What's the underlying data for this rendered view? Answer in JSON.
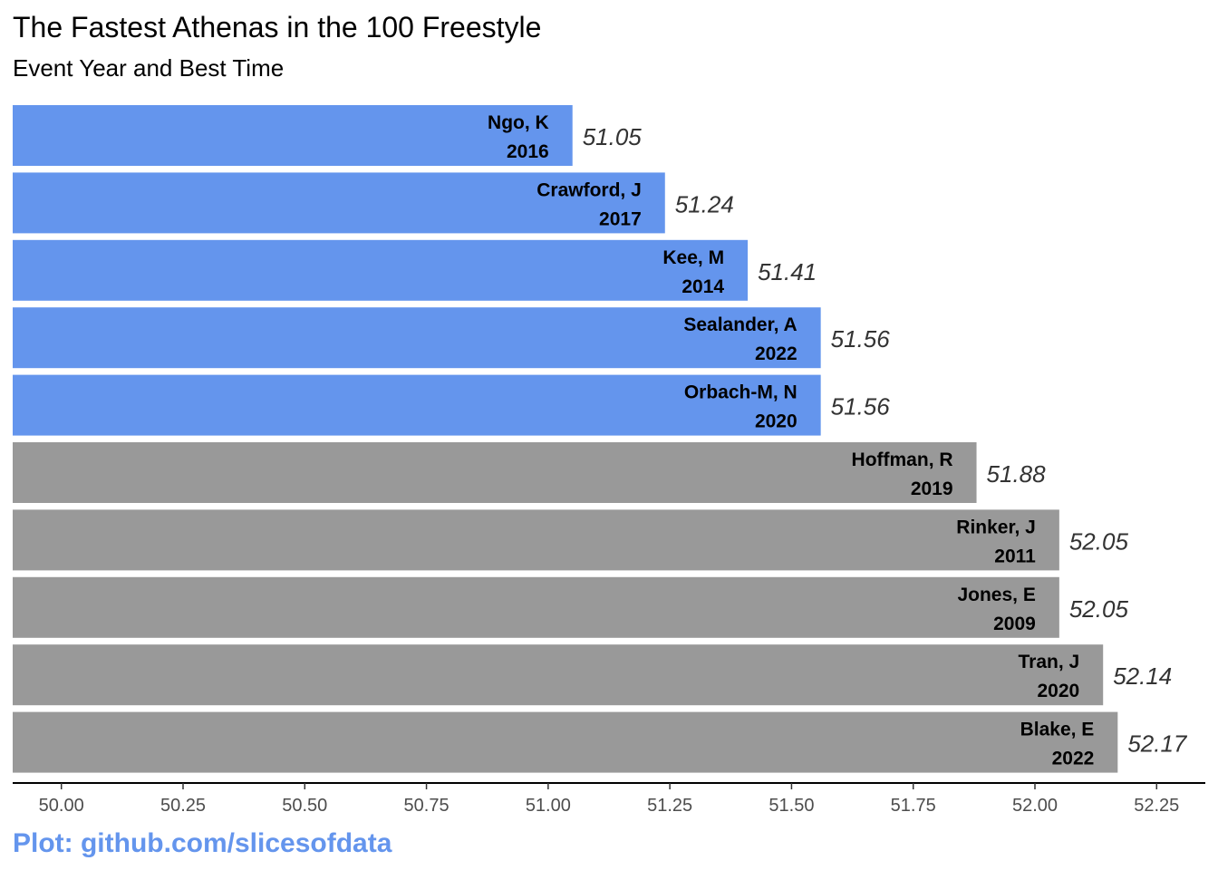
{
  "chart_data": {
    "type": "bar",
    "orientation": "horizontal",
    "title": "The Fastest Athenas in the 100 Freestyle",
    "subtitle": "Event Year and Best Time",
    "caption": "Plot: github.com/slicesofdata",
    "xlabel": "",
    "ylabel": "",
    "xlim": [
      49.9,
      52.35
    ],
    "xticks": [
      "50.00",
      "50.25",
      "50.50",
      "50.75",
      "51.00",
      "51.25",
      "51.50",
      "51.75",
      "52.00",
      "52.25"
    ],
    "grid": false,
    "legend": "none",
    "colors": {
      "highlight": "#6495ED",
      "other": "#999999",
      "caption": "#6495ED",
      "axis": "#000000",
      "value_text": "#333333",
      "tick_text": "#4d4d4d"
    },
    "bars": [
      {
        "name": "Ngo, K",
        "year": "2016",
        "value": 51.05,
        "label": "51.05",
        "highlight": true
      },
      {
        "name": "Crawford, J",
        "year": "2017",
        "value": 51.24,
        "label": "51.24",
        "highlight": true
      },
      {
        "name": "Kee, M",
        "year": "2014",
        "value": 51.41,
        "label": "51.41",
        "highlight": true
      },
      {
        "name": "Sealander, A",
        "year": "2022",
        "value": 51.56,
        "label": "51.56",
        "highlight": true
      },
      {
        "name": "Orbach-M, N",
        "year": "2020",
        "value": 51.56,
        "label": "51.56",
        "highlight": true
      },
      {
        "name": "Hoffman, R",
        "year": "2019",
        "value": 51.88,
        "label": "51.88",
        "highlight": false
      },
      {
        "name": "Rinker, J",
        "year": "2011",
        "value": 52.05,
        "label": "52.05",
        "highlight": false
      },
      {
        "name": "Jones, E",
        "year": "2009",
        "value": 52.05,
        "label": "52.05",
        "highlight": false
      },
      {
        "name": "Tran, J",
        "year": "2020",
        "value": 52.14,
        "label": "52.14",
        "highlight": false
      },
      {
        "name": "Blake, E",
        "year": "2022",
        "value": 52.17,
        "label": "52.17",
        "highlight": false
      }
    ]
  }
}
